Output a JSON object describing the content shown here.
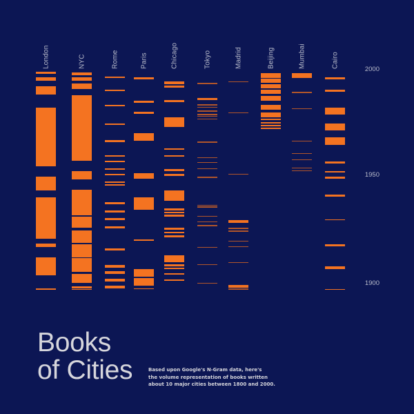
{
  "title_line1": "Books",
  "title_line2": "of Cities",
  "description_line1": "Based upon Google's N-Gram data, here's",
  "description_line2": "the volume representation of books written",
  "description_line3": "about 10 major cities between 1800 and 2000.",
  "colors": {
    "background": "#0c1654",
    "bar": "#f47321",
    "bar_faint": "#b2562a",
    "text": "#b9bccb"
  },
  "chart_data": {
    "type": "heatmap",
    "title": "Books of Cities",
    "subtitle": "Based upon Google's N-Gram data, here's the volume representation of books written about 10 major cities between 1800 and 2000.",
    "categories": [
      "London",
      "NYC",
      "Rome",
      "Paris",
      "Chicago",
      "Tokyo",
      "Madrid",
      "Beijing",
      "Mumbai",
      "Cairo"
    ],
    "y_ticks": [
      2000,
      1950,
      1900
    ],
    "ylim": [
      1895,
      2000
    ],
    "encoding": "Each column is a city; horizontal orange stripes mark years with book volume, stripe thickness reflects volume.",
    "series": [
      {
        "name": "London",
        "bars": [
          [
            104,
            3
          ],
          [
            112,
            5
          ],
          [
            125,
            12
          ],
          [
            156,
            85
          ],
          [
            256,
            20
          ],
          [
            286,
            60
          ],
          [
            353,
            5
          ],
          [
            373,
            26
          ],
          [
            418,
            2
          ]
        ]
      },
      {
        "name": "NYC",
        "bars": [
          [
            105,
            4
          ],
          [
            112,
            5
          ],
          [
            121,
            8
          ],
          [
            138,
            95
          ],
          [
            248,
            12
          ],
          [
            275,
            37
          ],
          [
            314,
            16
          ],
          [
            334,
            18
          ],
          [
            354,
            19
          ],
          [
            374,
            20
          ],
          [
            397,
            13
          ],
          [
            415,
            3
          ],
          [
            419,
            1
          ]
        ]
      },
      {
        "name": "Rome",
        "bars": [
          [
            111,
            2
          ],
          [
            130,
            2
          ],
          [
            152,
            2
          ],
          [
            179,
            2
          ],
          [
            203,
            3
          ],
          [
            225,
            2
          ],
          [
            233,
            2
          ],
          [
            244,
            2
          ],
          [
            252,
            2
          ],
          [
            263,
            2
          ],
          [
            267,
            2
          ],
          [
            293,
            3
          ],
          [
            305,
            3
          ],
          [
            316,
            3
          ],
          [
            328,
            3
          ],
          [
            360,
            3
          ],
          [
            384,
            4
          ],
          [
            393,
            4
          ],
          [
            404,
            4
          ],
          [
            414,
            4
          ]
        ]
      },
      {
        "name": "Paris",
        "bars": [
          [
            112,
            3
          ],
          [
            146,
            3
          ],
          [
            162,
            3
          ],
          [
            193,
            11
          ],
          [
            251,
            8
          ],
          [
            286,
            18
          ],
          [
            347,
            2
          ],
          [
            390,
            11
          ],
          [
            403,
            11
          ],
          [
            418,
            1
          ]
        ]
      },
      {
        "name": "Chicago",
        "bars": [
          [
            118,
            4
          ],
          [
            124,
            3
          ],
          [
            145,
            3
          ],
          [
            170,
            14
          ],
          [
            215,
            2
          ],
          [
            225,
            2
          ],
          [
            245,
            3
          ],
          [
            252,
            3
          ],
          [
            276,
            15
          ],
          [
            302,
            3
          ],
          [
            307,
            2
          ],
          [
            311,
            3
          ],
          [
            330,
            3
          ],
          [
            336,
            2
          ],
          [
            341,
            3
          ],
          [
            370,
            10
          ],
          [
            383,
            3
          ],
          [
            388,
            2
          ],
          [
            396,
            2
          ],
          [
            405,
            2
          ]
        ]
      },
      {
        "name": "Tokyo",
        "bars": [
          [
            120,
            2
          ],
          [
            142,
            3
          ],
          [
            151,
            2
          ],
          [
            155,
            1
          ],
          [
            160,
            2
          ],
          [
            165,
            2
          ],
          [
            168,
            1
          ],
          [
            172,
            1
          ],
          [
            205,
            2
          ],
          [
            228,
            1
          ],
          [
            235,
            1
          ],
          [
            244,
            1
          ],
          [
            256,
            2
          ],
          [
            297,
            1
          ],
          [
            299,
            2
          ],
          [
            313,
            1
          ],
          [
            321,
            1
          ],
          [
            326,
            2
          ],
          [
            358,
            1
          ],
          [
            383,
            1
          ],
          [
            410,
            1
          ]
        ]
      },
      {
        "name": "Madrid",
        "bars": [
          [
            118,
            1
          ],
          [
            163,
            1
          ],
          [
            252,
            1
          ],
          [
            319,
            4
          ],
          [
            330,
            2
          ],
          [
            334,
            2
          ],
          [
            349,
            1
          ],
          [
            357,
            1
          ],
          [
            380,
            1
          ],
          [
            413,
            4
          ],
          [
            418,
            2
          ]
        ]
      },
      {
        "name": "Beijing",
        "bars": [
          [
            106,
            7
          ],
          [
            114,
            6
          ],
          [
            122,
            6
          ],
          [
            130,
            6
          ],
          [
            139,
            7
          ],
          [
            152,
            7
          ],
          [
            163,
            7
          ],
          [
            172,
            2
          ],
          [
            177,
            2
          ],
          [
            181,
            2
          ],
          [
            185,
            2
          ]
        ]
      },
      {
        "name": "Mumbai",
        "bars": [
          [
            106,
            7
          ],
          [
            133,
            2
          ],
          [
            157,
            1
          ],
          [
            204,
            1
          ],
          [
            222,
            1
          ],
          [
            231,
            1
          ],
          [
            243,
            1
          ],
          [
            247,
            1
          ]
        ]
      },
      {
        "name": "Cairo",
        "bars": [
          [
            112,
            3
          ],
          [
            130,
            3
          ],
          [
            156,
            10
          ],
          [
            179,
            10
          ],
          [
            199,
            11
          ],
          [
            234,
            3
          ],
          [
            248,
            2
          ],
          [
            256,
            3
          ],
          [
            282,
            3
          ],
          [
            318,
            1
          ],
          [
            354,
            3
          ],
          [
            386,
            4
          ],
          [
            419,
            1
          ]
        ]
      }
    ],
    "faint_cities": [
      "Tokyo",
      "Madrid",
      "Mumbai"
    ]
  }
}
